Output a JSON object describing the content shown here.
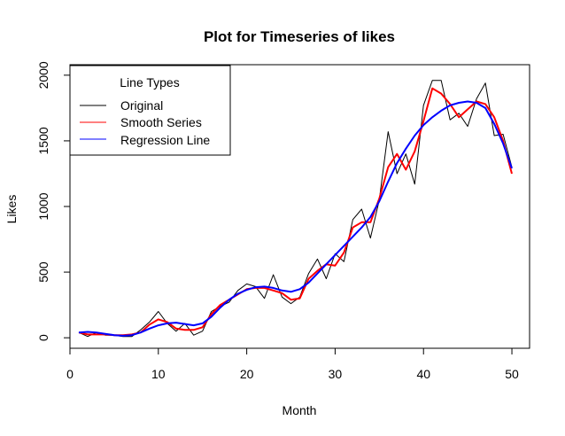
{
  "chart_data": {
    "type": "line",
    "title": "Plot for Timeseries of likes",
    "xlabel": "Month",
    "ylabel": "Likes",
    "xlim": [
      0,
      52
    ],
    "ylim": [
      -80,
      2080
    ],
    "xticks": [
      0,
      10,
      20,
      30,
      40,
      50
    ],
    "yticks": [
      0,
      500,
      1000,
      1500,
      2000
    ],
    "grid": false,
    "legend": {
      "title": "Line Types",
      "placement": "top-left",
      "entries": [
        {
          "label": "Original",
          "color": "#000000"
        },
        {
          "label": "Smooth Series",
          "color": "#ff0000"
        },
        {
          "label": "Regression Line",
          "color": "#0000ff"
        }
      ]
    },
    "series": [
      {
        "name": "Original",
        "color": "#000000",
        "x": [
          1,
          2,
          3,
          4,
          5,
          6,
          7,
          8,
          9,
          10,
          11,
          12,
          13,
          14,
          15,
          16,
          17,
          18,
          19,
          20,
          21,
          22,
          23,
          24,
          25,
          26,
          27,
          28,
          29,
          30,
          31,
          32,
          33,
          34,
          35,
          36,
          37,
          38,
          39,
          40,
          41,
          42,
          43,
          44,
          45,
          46,
          47,
          48,
          49,
          50
        ],
        "values": [
          40,
          10,
          40,
          20,
          20,
          10,
          10,
          60,
          120,
          200,
          110,
          50,
          110,
          20,
          50,
          200,
          240,
          270,
          360,
          410,
          390,
          300,
          480,
          310,
          260,
          310,
          490,
          600,
          450,
          640,
          580,
          900,
          980,
          760,
          1050,
          1570,
          1250,
          1400,
          1170,
          1770,
          1960,
          1960,
          1660,
          1710,
          1610,
          1820,
          1940,
          1540,
          1550,
          1300
        ]
      },
      {
        "name": "Smooth Series",
        "color": "#ff0000",
        "x": [
          1,
          2,
          3,
          4,
          5,
          6,
          7,
          8,
          9,
          10,
          11,
          12,
          13,
          14,
          15,
          16,
          17,
          18,
          19,
          20,
          21,
          22,
          23,
          24,
          25,
          26,
          27,
          28,
          29,
          30,
          31,
          32,
          33,
          34,
          35,
          36,
          37,
          38,
          39,
          40,
          41,
          42,
          43,
          44,
          45,
          46,
          47,
          48,
          49,
          50
        ],
        "values": [
          40,
          25,
          25,
          25,
          20,
          20,
          25,
          40,
          100,
          140,
          120,
          70,
          60,
          60,
          80,
          180,
          250,
          290,
          330,
          370,
          380,
          380,
          360,
          340,
          290,
          300,
          450,
          510,
          560,
          550,
          650,
          840,
          880,
          880,
          1060,
          1300,
          1400,
          1280,
          1420,
          1650,
          1900,
          1860,
          1780,
          1680,
          1740,
          1800,
          1780,
          1680,
          1500,
          1250
        ]
      },
      {
        "name": "Regression Line",
        "color": "#0000ff",
        "x": [
          1,
          2,
          3,
          4,
          5,
          6,
          7,
          8,
          9,
          10,
          11,
          12,
          13,
          14,
          15,
          16,
          17,
          18,
          19,
          20,
          21,
          22,
          23,
          24,
          25,
          26,
          27,
          28,
          29,
          30,
          31,
          32,
          33,
          34,
          35,
          36,
          37,
          38,
          39,
          40,
          41,
          42,
          43,
          44,
          45,
          46,
          47,
          48,
          49,
          50
        ],
        "values": [
          40,
          45,
          40,
          30,
          20,
          15,
          20,
          40,
          70,
          95,
          110,
          115,
          105,
          95,
          110,
          160,
          230,
          290,
          335,
          365,
          385,
          390,
          380,
          360,
          350,
          370,
          420,
          490,
          560,
          630,
          700,
          770,
          840,
          920,
          1040,
          1190,
          1330,
          1440,
          1540,
          1620,
          1680,
          1730,
          1770,
          1790,
          1800,
          1790,
          1750,
          1630,
          1480,
          1290
        ]
      }
    ]
  }
}
